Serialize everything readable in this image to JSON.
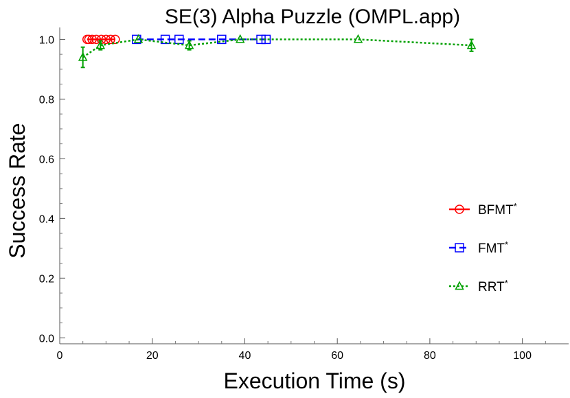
{
  "chart_data": {
    "type": "line",
    "title": "SE(3) Alpha Puzzle (OMPL.app)",
    "xlabel": "Execution Time (s)",
    "ylabel": "Success Rate",
    "xlim": [
      0,
      110
    ],
    "ylim": [
      -0.02,
      1.04
    ],
    "x_ticks": [
      "0",
      "20",
      "40",
      "60",
      "80",
      "100"
    ],
    "y_ticks": [
      "0.0",
      "0.2",
      "0.4",
      "0.6",
      "0.8",
      "1.0"
    ],
    "grid": false,
    "legend_position": "right",
    "series": [
      {
        "name": "BFMT",
        "name_suffix": "*",
        "color": "#ff0000",
        "marker": "circle",
        "dash": "solid",
        "x": [
          5.9,
          6.3,
          7.0,
          7.9,
          9.0,
          10.0,
          11.0,
          12.0
        ],
        "y": [
          1.0,
          1.0,
          1.0,
          1.0,
          1.0,
          1.0,
          1.0,
          1.0
        ],
        "err": [
          0,
          0,
          0,
          0,
          0,
          0,
          0,
          0
        ]
      },
      {
        "name": "FMT",
        "name_suffix": "*",
        "color": "#0000ff",
        "marker": "square",
        "dash": "dashed",
        "x": [
          16.6,
          22.8,
          25.8,
          35.0,
          43.5,
          44.6
        ],
        "y": [
          1.0,
          1.0,
          1.0,
          1.0,
          1.0,
          1.0
        ],
        "err": [
          0,
          0,
          0,
          0,
          0,
          0
        ]
      },
      {
        "name": "RRT",
        "name_suffix": "*",
        "color": "#00a000",
        "marker": "triangle",
        "dash": "dotted",
        "x": [
          5.0,
          8.8,
          17.0,
          28.0,
          39.0,
          64.5,
          89.0
        ],
        "y": [
          0.94,
          0.98,
          1.0,
          0.98,
          1.0,
          1.0,
          0.98
        ],
        "err": [
          0.034,
          0.015,
          0,
          0.015,
          0,
          0,
          0.02
        ]
      }
    ]
  }
}
